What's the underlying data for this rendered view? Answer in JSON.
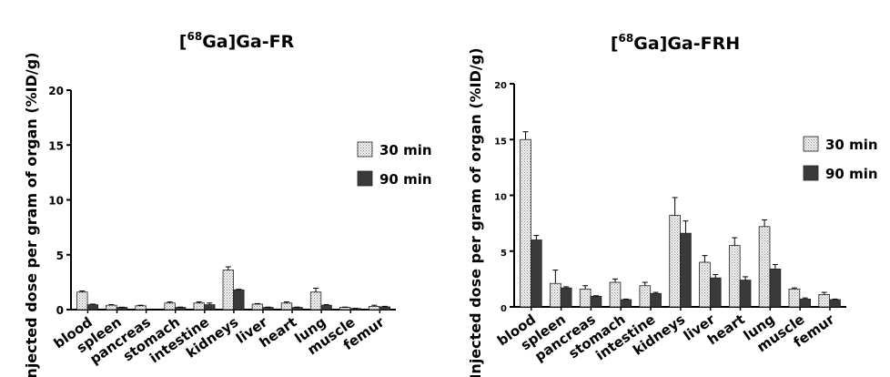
{
  "chart_data": [
    {
      "type": "bar",
      "title": "[68Ga]Ga-FR",
      "title_parts": {
        "open": "[",
        "superscript": "68",
        "rest": "Ga]Ga-FR"
      },
      "ylabel": "Injected dose per gram of organ (%ID/g)",
      "xlabel": "",
      "ylim": [
        0,
        20
      ],
      "yticks": [
        "0",
        "5",
        "10",
        "15",
        "20"
      ],
      "categories": [
        "blood",
        "spleen",
        "pancreas",
        "stomach",
        "intestine",
        "kidneys",
        "liver",
        "heart",
        "lung",
        "muscle",
        "femur"
      ],
      "series": [
        {
          "name": "30 min",
          "values": [
            1.6,
            0.4,
            0.35,
            0.6,
            0.6,
            3.6,
            0.5,
            0.6,
            1.6,
            0.2,
            0.3
          ],
          "errors": [
            0.1,
            0.05,
            0.05,
            0.1,
            0.1,
            0.3,
            0.05,
            0.1,
            0.35,
            0.03,
            0.1
          ]
        },
        {
          "name": "90 min",
          "values": [
            0.45,
            0.2,
            0.0,
            0.2,
            0.45,
            1.8,
            0.2,
            0.2,
            0.4,
            0.1,
            0.25
          ],
          "errors": [
            0.05,
            0.02,
            0.0,
            0.03,
            0.15,
            0.05,
            0.03,
            0.03,
            0.05,
            0.02,
            0.05
          ]
        }
      ],
      "legend": {
        "position": "right",
        "entries": [
          "30 min",
          "90 min"
        ]
      },
      "grid": false
    },
    {
      "type": "bar",
      "title": "[68Ga]Ga-FRH",
      "title_parts": {
        "open": "[",
        "superscript": "68",
        "rest": "Ga]Ga-FRH"
      },
      "ylabel": "Injected dose per gram of organ (%ID/g)",
      "xlabel": "",
      "ylim": [
        0,
        20
      ],
      "yticks": [
        "0",
        "5",
        "10",
        "15",
        "20"
      ],
      "categories": [
        "blood",
        "spleen",
        "pancreas",
        "stomach",
        "intestine",
        "kidneys",
        "liver",
        "heart",
        "lung",
        "muscle",
        "femur"
      ],
      "series": [
        {
          "name": "30 min",
          "values": [
            15.0,
            2.1,
            1.6,
            2.2,
            1.9,
            8.2,
            4.0,
            5.5,
            7.2,
            1.6,
            1.1
          ],
          "errors": [
            0.7,
            1.2,
            0.3,
            0.3,
            0.3,
            1.6,
            0.6,
            0.7,
            0.6,
            0.1,
            0.2
          ]
        },
        {
          "name": "90 min",
          "values": [
            6.0,
            1.7,
            0.95,
            0.65,
            1.2,
            6.6,
            2.6,
            2.4,
            3.4,
            0.7,
            0.65
          ],
          "errors": [
            0.4,
            0.1,
            0.05,
            0.05,
            0.1,
            1.1,
            0.3,
            0.3,
            0.4,
            0.1,
            0.05
          ]
        }
      ],
      "legend": {
        "position": "right",
        "entries": [
          "30 min",
          "90 min"
        ]
      },
      "grid": false
    }
  ],
  "colors": {
    "series_30": "#e6e6e6",
    "series_90": "#3a3a3a",
    "axis": "#000000"
  }
}
